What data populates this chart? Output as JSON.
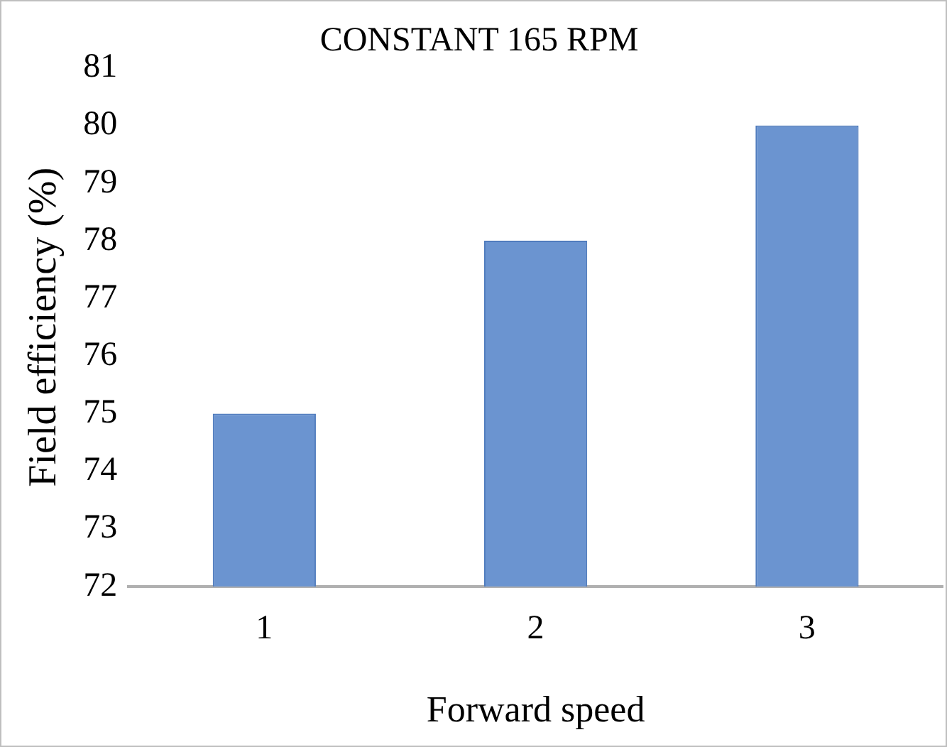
{
  "chart_data": {
    "type": "bar",
    "title": "CONSTANT 165 RPM",
    "xlabel": "Forward speed",
    "ylabel": "Field efficiency (%)",
    "categories": [
      "1",
      "2",
      "3"
    ],
    "values": [
      75,
      78,
      80
    ],
    "color": "#6b94d0",
    "ylim": [
      72,
      81
    ],
    "yticks": [
      72,
      73,
      74,
      75,
      76,
      77,
      78,
      79,
      80,
      81
    ],
    "grid": false,
    "legend": false
  }
}
